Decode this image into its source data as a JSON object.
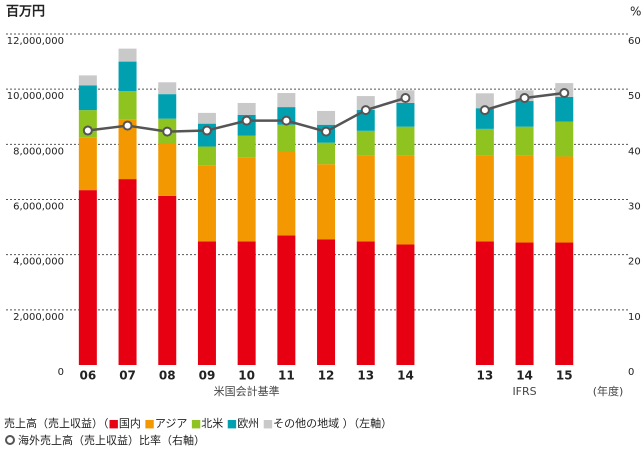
{
  "chart_data": {
    "type": "bar",
    "ylabel": "百万円",
    "y2label": "%",
    "categories": [
      "06",
      "07",
      "08",
      "09",
      "10",
      "11",
      "12",
      "13",
      "14",
      null,
      "13",
      "14",
      "15"
    ],
    "group_labels": [
      "米国会計基準",
      "IFRS"
    ],
    "x_unit": "(年度)",
    "stacked": true,
    "series": [
      {
        "name": "国内",
        "color": "#e60012",
        "values": [
          6340000,
          6740000,
          6130000,
          4480000,
          4480000,
          4700000,
          4550000,
          4480000,
          4370000,
          null,
          4480000,
          4440000,
          4440000
        ]
      },
      {
        "name": "アジア",
        "color": "#f39800",
        "values": [
          1900000,
          2150000,
          1900000,
          2760000,
          3050000,
          3040000,
          2730000,
          3120000,
          3230000,
          null,
          3120000,
          3160000,
          3120000
        ]
      },
      {
        "name": "北米",
        "color": "#8fc31f",
        "values": [
          1000000,
          1040000,
          900000,
          680000,
          790000,
          970000,
          780000,
          890000,
          1040000,
          null,
          960000,
          1040000,
          1260000
        ]
      },
      {
        "name": "欧州",
        "color": "#00a0b0",
        "values": [
          900000,
          1070000,
          890000,
          830000,
          750000,
          640000,
          650000,
          760000,
          860000,
          null,
          750000,
          930000,
          900000
        ]
      },
      {
        "name": "その他の地域",
        "color": "#c9c9c9",
        "values": [
          360000,
          470000,
          430000,
          390000,
          430000,
          510000,
          500000,
          500000,
          460000,
          null,
          540000,
          390000,
          500000
        ]
      },
      {
        "name": "海外売上高（売上収益）比率（右軸）",
        "type": "line",
        "axis": "y2",
        "color": "#555555",
        "values": [
          42.5,
          43.4,
          42.3,
          42.5,
          44.3,
          44.3,
          42.3,
          46.2,
          48.4,
          null,
          46.2,
          48.4,
          49.3
        ]
      }
    ],
    "legend_prefix": "売上高（売上収益）（",
    "legend_suffix": "）（左軸）",
    "ylim": [
      0,
      12000000
    ],
    "yticks": [
      0,
      {
        "value": 2000000,
        "label": "2,000,000"
      },
      {
        "value": 4000000,
        "label": "4,000,000"
      },
      {
        "value": 6000000,
        "label": "6,000,000"
      },
      {
        "value": 8000000,
        "label": "8,000,000"
      },
      {
        "value": 10000000,
        "label": "10,000,000"
      },
      {
        "value": 12000000,
        "label": "12,000,000"
      }
    ],
    "y2lim": [
      0,
      60
    ],
    "y2ticks": [
      0,
      10,
      20,
      30,
      40,
      50,
      60
    ],
    "grid": true
  }
}
